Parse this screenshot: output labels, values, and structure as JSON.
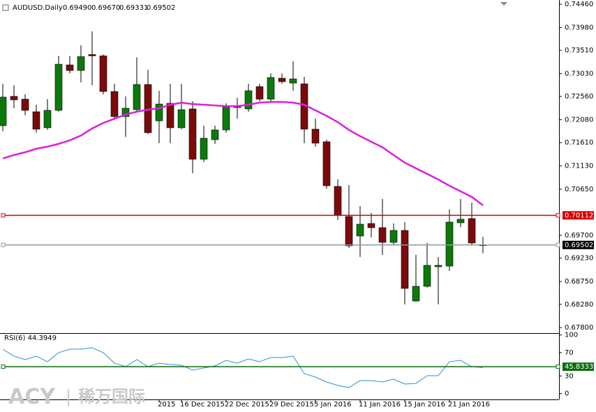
{
  "chart_data": [
    {
      "type": "candlestick",
      "title": "AUDUSD.Daily",
      "ohlc_labels": [
        "0.69490",
        "0.69670",
        "0.69331",
        "0.69502"
      ],
      "annotations": [
        "ACY",
        "|",
        "稀万国际"
      ],
      "categories": [
        null,
        null,
        null,
        null,
        null,
        null,
        null,
        null,
        null,
        null,
        null,
        null,
        null,
        null,
        "2015",
        null,
        "16 Dec 2015",
        null,
        null,
        null,
        "22 Dec 2015",
        null,
        null,
        null,
        "29 Dec 2015",
        null,
        null,
        null,
        "5 Jan 2016",
        null,
        null,
        null,
        "11 Jan 2016",
        null,
        null,
        null,
        "15 Jan 2016",
        null,
        null,
        null,
        "21 Jan 2016",
        null,
        null,
        null
      ],
      "open": [
        0.71958,
        0.72562,
        0.72504,
        0.72245,
        0.71915,
        0.72274,
        0.73209,
        0.73094,
        0.73424,
        0.73396,
        0.72662,
        0.72145,
        0.72288,
        0.72806,
        0.72058,
        0.72418,
        0.71915,
        0.72303,
        0.71267,
        0.7167,
        0.71871,
        0.7236,
        0.72303,
        0.72763,
        0.72504,
        0.72935,
        0.72835,
        0.7282,
        0.71886,
        0.71627,
        0.70707,
        0.70088,
        0.69686,
        0.69944,
        0.69858,
        0.69556,
        0.69801,
        0.68348,
        0.6865,
        0.69053,
        0.69067,
        0.69959,
        0.70045,
        0.6949
      ],
      "high": [
        0.7282,
        0.72792,
        0.72605,
        0.72389,
        0.72504,
        0.73396,
        0.73396,
        0.73611,
        0.73899,
        0.73424,
        0.7282,
        0.72562,
        0.73367,
        0.73108,
        0.72677,
        0.7282,
        0.7282,
        0.72461,
        0.71958,
        0.71958,
        0.72418,
        0.72533,
        0.7282,
        0.7282,
        0.73036,
        0.73036,
        0.73281,
        0.72964,
        0.72101,
        0.7167,
        0.7085,
        0.70735,
        0.70304,
        0.7016,
        0.70448,
        0.69944,
        0.69973,
        0.69297,
        0.69542,
        0.69254,
        0.70232,
        0.70448,
        0.70376,
        0.6967
      ],
      "low": [
        0.71843,
        0.72317,
        0.72173,
        0.71814,
        0.71871,
        0.72245,
        0.73036,
        0.72849,
        0.72792,
        0.72605,
        0.72101,
        0.71728,
        0.72245,
        0.71785,
        0.71598,
        0.71598,
        0.71886,
        0.7098,
        0.7121,
        0.71584,
        0.71814,
        0.72101,
        0.72245,
        0.72461,
        0.72461,
        0.7282,
        0.72677,
        0.71598,
        0.71526,
        0.70663,
        0.70016,
        0.69441,
        0.69254,
        0.69657,
        0.69297,
        0.69513,
        0.68276,
        0.68334,
        0.68621,
        0.68276,
        0.68967,
        0.69873,
        0.69513,
        0.69331
      ],
      "close": [
        0.72547,
        0.7249,
        0.72274,
        0.71886,
        0.72274,
        0.73223,
        0.73094,
        0.73381,
        0.73396,
        0.72662,
        0.72145,
        0.72317,
        0.72806,
        0.71814,
        0.72403,
        0.71915,
        0.72288,
        0.71267,
        0.71699,
        0.71871,
        0.7236,
        0.72332,
        0.72677,
        0.72504,
        0.7295,
        0.72864,
        0.72921,
        0.71886,
        0.71598,
        0.70721,
        0.70117,
        0.69484,
        0.6993,
        0.69858,
        0.69556,
        0.69801,
        0.68607,
        0.6865,
        0.69082,
        0.69082,
        0.69973,
        0.70031,
        0.69542,
        0.69502
      ],
      "up_color": "#0b7a0b",
      "down_color": "#7d0a0a",
      "moving_average": {
        "color": "#dd1fdd",
        "values": [
          0.71282,
          0.71354,
          0.71411,
          0.71483,
          0.71526,
          0.71584,
          0.71656,
          0.71756,
          0.719,
          0.72015,
          0.72101,
          0.72188,
          0.72245,
          0.72288,
          0.72317,
          0.72389,
          0.72432,
          0.72403,
          0.72389,
          0.72375,
          0.7236,
          0.7236,
          0.72389,
          0.72432,
          0.72447,
          0.72447,
          0.72432,
          0.72389,
          0.72274,
          0.72159,
          0.7203,
          0.71871,
          0.71742,
          0.71627,
          0.71512,
          0.71354,
          0.71196,
          0.7108,
          0.70965,
          0.7085,
          0.70721,
          0.70606,
          0.70491,
          0.70318
        ]
      },
      "hlines": [
        {
          "value": 0.70112,
          "color": "#d40000",
          "label_bg": "#d40000"
        },
        {
          "value": 0.69502,
          "color": "#8a9aa6",
          "label_bg": "#000000"
        }
      ],
      "ylim": [
        0.67687,
        0.74546
      ],
      "yticks": [
        {
          "value": 0.7446,
          "label": "0.74460"
        },
        {
          "value": 0.7398,
          "label": "0.73980"
        },
        {
          "value": 0.7351,
          "label": "0.73510"
        },
        {
          "value": 0.7303,
          "label": "0.73030"
        },
        {
          "value": 0.7256,
          "label": "0.72560"
        },
        {
          "value": 0.7208,
          "label": "0.72080"
        },
        {
          "value": 0.7161,
          "label": "0.71610"
        },
        {
          "value": 0.7113,
          "label": "0.71130"
        },
        {
          "value": 0.7065,
          "label": "0.70650"
        },
        {
          "value": 0.697,
          "label": "0.69700"
        },
        {
          "value": 0.6923,
          "label": "0.69230"
        },
        {
          "value": 0.6875,
          "label": "0.68750"
        },
        {
          "value": 0.6828,
          "label": "0.68280"
        },
        {
          "value": 0.678,
          "label": "0.67800"
        }
      ],
      "grid": false
    },
    {
      "type": "line",
      "title": "RSI(6) 44.3949",
      "color": "#2a8fd6",
      "values": [
        75.8,
        63.9,
        57.9,
        63.9,
        54.3,
        69.8,
        75.8,
        75.8,
        78.2,
        69.8,
        51.9,
        46.0,
        57.9,
        46.0,
        51.9,
        49.6,
        48.4,
        40.0,
        43.6,
        47.2,
        56.7,
        51.9,
        59.1,
        54.3,
        61.5,
        61.5,
        63.9,
        34.1,
        28.1,
        19.8,
        13.8,
        10.2,
        22.1,
        22.1,
        19.8,
        24.5,
        16.2,
        17.4,
        30.5,
        30.5,
        54.3,
        56.7,
        46.0,
        44.3949
      ],
      "hlines": [
        {
          "value": 45.8333,
          "color": "#0b6b0b",
          "label_bg": "#0b6b0b"
        }
      ],
      "ylim": [
        -10,
        102
      ],
      "yticks": [
        100,
        70,
        30,
        0
      ],
      "grid": false
    }
  ]
}
